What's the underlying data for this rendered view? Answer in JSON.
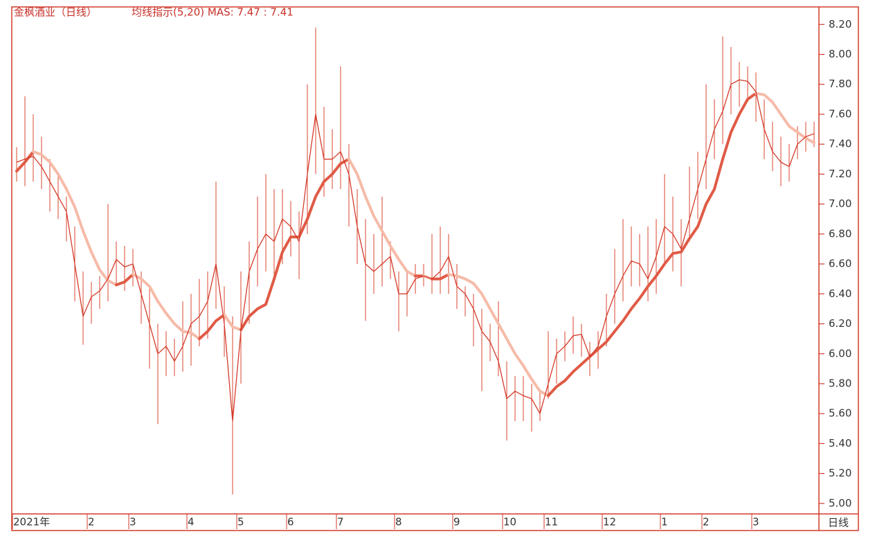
{
  "chart_data": {
    "type": "stock",
    "title": "金枫酒业（日线）",
    "indicator": "均线指示(5,20) MAS: 7.47 : 7.41",
    "period_label": "日线",
    "categories": [
      "2021年",
      null,
      null,
      null,
      null,
      null,
      null,
      null,
      null,
      "2",
      null,
      null,
      null,
      null,
      "3",
      null,
      null,
      null,
      null,
      null,
      null,
      "4",
      null,
      null,
      null,
      null,
      null,
      "5",
      null,
      null,
      null,
      null,
      null,
      "6",
      null,
      null,
      null,
      null,
      null,
      "7",
      null,
      null,
      null,
      null,
      null,
      null,
      "8",
      null,
      null,
      null,
      null,
      null,
      null,
      "9",
      null,
      null,
      null,
      null,
      null,
      "10",
      null,
      null,
      null,
      null,
      "11",
      null,
      null,
      null,
      null,
      null,
      null,
      "12",
      null,
      null,
      null,
      null,
      null,
      null,
      "1",
      null,
      null,
      null,
      null,
      "2",
      null,
      null,
      null,
      null,
      null,
      "3",
      null,
      null,
      null,
      null,
      null,
      null,
      null
    ],
    "high": [
      7.38,
      7.72,
      7.6,
      7.45,
      7.3,
      7.2,
      7.05,
      6.85,
      6.55,
      6.48,
      6.52,
      7.0,
      6.75,
      6.72,
      6.7,
      6.55,
      6.45,
      6.2,
      6.15,
      6.1,
      6.35,
      6.4,
      6.5,
      6.55,
      7.15,
      6.45,
      6.25,
      6.55,
      6.75,
      7.05,
      7.2,
      7.1,
      7.1,
      7.02,
      6.95,
      7.8,
      8.18,
      7.65,
      7.5,
      7.92,
      7.4,
      7.1,
      6.9,
      6.8,
      7.05,
      6.75,
      6.55,
      6.55,
      6.6,
      6.6,
      6.8,
      6.85,
      6.8,
      6.6,
      6.45,
      6.4,
      6.3,
      6.2,
      6.35,
      5.95,
      5.85,
      5.85,
      5.8,
      5.75,
      6.15,
      6.1,
      6.15,
      6.25,
      6.2,
      6.08,
      6.15,
      6.4,
      6.7,
      6.9,
      6.85,
      6.8,
      6.85,
      6.9,
      7.2,
      7.05,
      6.9,
      7.25,
      7.35,
      7.8,
      7.7,
      8.12,
      8.05,
      7.95,
      7.92,
      7.88,
      7.7,
      7.55,
      7.45,
      7.4,
      7.52,
      7.55,
      7.55
    ],
    "low": [
      7.15,
      7.12,
      7.15,
      7.1,
      6.95,
      6.9,
      6.75,
      6.35,
      6.06,
      6.2,
      6.3,
      6.35,
      6.45,
      6.42,
      6.45,
      6.2,
      5.9,
      5.53,
      5.85,
      5.85,
      5.88,
      5.92,
      6.05,
      6.1,
      6.3,
      5.98,
      5.06,
      5.8,
      6.2,
      6.45,
      6.55,
      6.5,
      6.6,
      6.65,
      6.5,
      6.8,
      7.2,
      7.05,
      7.1,
      7.1,
      6.85,
      6.6,
      6.22,
      6.4,
      6.45,
      6.5,
      6.15,
      6.25,
      6.4,
      6.45,
      6.4,
      6.4,
      6.4,
      6.3,
      6.25,
      6.05,
      5.75,
      5.95,
      5.85,
      5.42,
      5.55,
      5.55,
      5.48,
      5.55,
      5.7,
      5.8,
      5.95,
      6.0,
      5.98,
      5.85,
      5.9,
      6.05,
      6.2,
      6.35,
      6.45,
      6.45,
      6.35,
      6.4,
      6.6,
      6.55,
      6.45,
      6.75,
      6.9,
      7.1,
      7.3,
      7.4,
      7.6,
      7.65,
      7.7,
      7.55,
      7.3,
      7.22,
      7.12,
      7.15,
      7.3,
      7.35,
      7.38
    ],
    "ma5": [
      7.28,
      7.3,
      7.32,
      7.25,
      7.15,
      7.05,
      6.95,
      6.6,
      6.25,
      6.38,
      6.42,
      6.5,
      6.63,
      6.58,
      6.6,
      6.4,
      6.2,
      6.0,
      6.05,
      5.95,
      6.05,
      6.2,
      6.25,
      6.35,
      6.6,
      6.2,
      5.55,
      6.15,
      6.55,
      6.7,
      6.8,
      6.75,
      6.9,
      6.85,
      6.75,
      7.2,
      7.6,
      7.3,
      7.3,
      7.35,
      7.2,
      6.85,
      6.6,
      6.55,
      6.6,
      6.65,
      6.4,
      6.4,
      6.5,
      6.52,
      6.5,
      6.55,
      6.65,
      6.45,
      6.4,
      6.3,
      6.15,
      6.08,
      5.95,
      5.7,
      5.75,
      5.72,
      5.7,
      5.6,
      5.8,
      6.0,
      6.05,
      6.12,
      6.13,
      5.98,
      6.05,
      6.25,
      6.4,
      6.52,
      6.62,
      6.6,
      6.5,
      6.65,
      6.85,
      6.8,
      6.7,
      6.9,
      7.1,
      7.3,
      7.5,
      7.62,
      7.8,
      7.83,
      7.82,
      7.75,
      7.5,
      7.35,
      7.28,
      7.25,
      7.4,
      7.45,
      7.47
    ],
    "ma20": [
      7.22,
      7.28,
      7.35,
      7.33,
      7.28,
      7.2,
      7.1,
      6.98,
      6.82,
      6.68,
      6.56,
      6.49,
      6.46,
      6.48,
      6.53,
      6.5,
      6.45,
      6.35,
      6.27,
      6.2,
      6.15,
      6.14,
      6.1,
      6.15,
      6.22,
      6.26,
      6.18,
      6.16,
      6.25,
      6.3,
      6.33,
      6.5,
      6.68,
      6.78,
      6.78,
      6.9,
      7.05,
      7.15,
      7.2,
      7.27,
      7.3,
      7.2,
      7.05,
      6.92,
      6.82,
      6.72,
      6.63,
      6.55,
      6.52,
      6.52,
      6.5,
      6.5,
      6.53,
      6.52,
      6.5,
      6.47,
      6.4,
      6.3,
      6.2,
      6.1,
      6.0,
      5.92,
      5.83,
      5.75,
      5.72,
      5.78,
      5.82,
      5.88,
      5.93,
      5.98,
      6.03,
      6.08,
      6.15,
      6.22,
      6.3,
      6.37,
      6.45,
      6.52,
      6.6,
      6.67,
      6.68,
      6.77,
      6.85,
      7.0,
      7.1,
      7.3,
      7.48,
      7.6,
      7.7,
      7.74,
      7.73,
      7.68,
      7.6,
      7.52,
      7.48,
      7.44,
      7.41
    ],
    "bar_color": "#d9442e",
    "ma5_color": "#d43a2a",
    "ma20_up_color": "#e05a45",
    "ma20_down_color": "#f6bba8",
    "ylim": [
      4.93,
      8.28
    ],
    "yticks": [
      {
        "value": 8.2,
        "label": "8.20"
      },
      {
        "value": 8.0,
        "label": "8.00"
      },
      {
        "value": 7.8,
        "label": "7.80"
      },
      {
        "value": 7.6,
        "label": "7.60"
      },
      {
        "value": 7.4,
        "label": "7.40"
      },
      {
        "value": 7.2,
        "label": "7.20"
      },
      {
        "value": 7.0,
        "label": "7.00"
      },
      {
        "value": 6.8,
        "label": "6.80"
      },
      {
        "value": 6.6,
        "label": "6.60"
      },
      {
        "value": 6.4,
        "label": "6.40"
      },
      {
        "value": 6.2,
        "label": "6.20"
      },
      {
        "value": 6.0,
        "label": "6.00"
      },
      {
        "value": 5.8,
        "label": "5.80"
      },
      {
        "value": 5.6,
        "label": "5.60"
      },
      {
        "value": 5.4,
        "label": "5.40"
      },
      {
        "value": 5.2,
        "label": "5.20"
      },
      {
        "value": 5.0,
        "label": "5.00"
      }
    ]
  }
}
